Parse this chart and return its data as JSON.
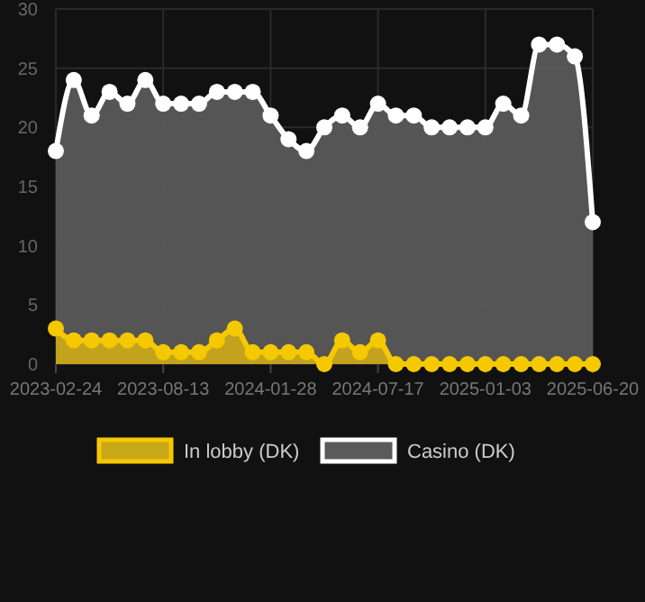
{
  "chart_data": {
    "type": "area",
    "categories": [
      "2023-02-24",
      null,
      null,
      null,
      null,
      null,
      "2023-08-13",
      null,
      null,
      null,
      null,
      null,
      "2024-01-28",
      null,
      null,
      null,
      null,
      null,
      "2024-07-17",
      null,
      null,
      null,
      null,
      null,
      "2025-01-03",
      null,
      null,
      null,
      null,
      null,
      "2025-06-20"
    ],
    "series": [
      {
        "name": "In lobby (DK)",
        "color": "#f5c800",
        "values": [
          3,
          2,
          2,
          2,
          2,
          2,
          1,
          1,
          1,
          2,
          3,
          1,
          1,
          1,
          1,
          0,
          2,
          1,
          2,
          0,
          0,
          0,
          0,
          0,
          0,
          0,
          0,
          0,
          0,
          0,
          0
        ]
      },
      {
        "name": "Casino (DK)",
        "color": "#ffffff",
        "values": [
          18,
          24,
          21,
          23,
          22,
          24,
          22,
          22,
          22,
          23,
          23,
          23,
          21,
          19,
          18,
          20,
          21,
          20,
          22,
          21,
          21,
          20,
          20,
          20,
          20,
          22,
          21,
          27,
          27,
          26,
          12
        ]
      }
    ],
    "ylim": [
      0,
      30
    ],
    "yticks": [
      0,
      5,
      10,
      15,
      20,
      25,
      30
    ],
    "grid": true,
    "legend": "bottom",
    "marker": "circle"
  }
}
